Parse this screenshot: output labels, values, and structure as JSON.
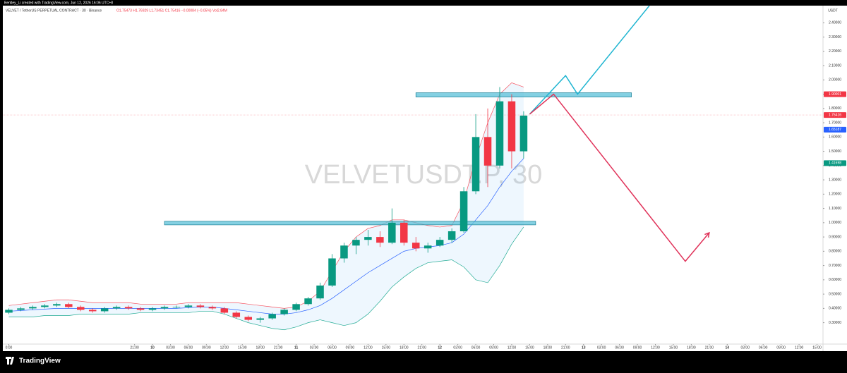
{
  "header": {
    "credit": "Bentley_Li created with TradingView.com, Jun 12, 2026 16:06 UTC+8"
  },
  "chart_data": {
    "type": "candlestick",
    "symbol_line": "VELVET / TetherUS PERPETUAL CONTRACT · 30 · Binance",
    "legend_text": "O1.75473 H1.76929 L1.73451 C1.75416 −0.00084 (−0.05%) Vol2.84M",
    "watermark": "VELVETUSDT.P, 30",
    "y_unit": "USDT",
    "up_color": "#089981",
    "down_color": "#f23645",
    "x": [
      0,
      2,
      4,
      6,
      8,
      10,
      12,
      14,
      16,
      18,
      20,
      22,
      24,
      26,
      28,
      30,
      32,
      34,
      36,
      38,
      40,
      42,
      44,
      46,
      48,
      50,
      52,
      54,
      56,
      58,
      60,
      62,
      64,
      66,
      68,
      70,
      72,
      74,
      76,
      78,
      80,
      82,
      84,
      86
    ],
    "open": [
      0.37,
      0.39,
      0.4,
      0.41,
      0.42,
      0.43,
      0.41,
      0.39,
      0.38,
      0.4,
      0.41,
      0.4,
      0.39,
      0.4,
      0.41,
      0.41,
      0.42,
      0.41,
      0.4,
      0.37,
      0.34,
      0.32,
      0.33,
      0.36,
      0.39,
      0.43,
      0.47,
      0.56,
      0.75,
      0.84,
      0.88,
      0.9,
      0.86,
      1.0,
      0.86,
      0.82,
      0.84,
      0.88,
      0.94,
      1.22,
      1.6,
      1.4,
      1.85,
      1.5
    ],
    "high": [
      0.4,
      0.41,
      0.42,
      0.43,
      0.44,
      0.44,
      0.42,
      0.4,
      0.41,
      0.42,
      0.42,
      0.41,
      0.41,
      0.42,
      0.42,
      0.43,
      0.43,
      0.42,
      0.41,
      0.38,
      0.35,
      0.34,
      0.37,
      0.4,
      0.44,
      0.48,
      0.58,
      0.78,
      0.86,
      0.9,
      0.95,
      0.94,
      1.1,
      1.02,
      0.9,
      0.86,
      0.9,
      0.96,
      1.25,
      1.76,
      1.8,
      1.95,
      1.9,
      1.78
    ],
    "low": [
      0.36,
      0.38,
      0.39,
      0.4,
      0.41,
      0.4,
      0.38,
      0.37,
      0.37,
      0.39,
      0.39,
      0.38,
      0.38,
      0.39,
      0.4,
      0.4,
      0.4,
      0.39,
      0.36,
      0.33,
      0.31,
      0.3,
      0.32,
      0.35,
      0.38,
      0.42,
      0.46,
      0.55,
      0.72,
      0.78,
      0.84,
      0.83,
      0.85,
      0.84,
      0.8,
      0.79,
      0.83,
      0.86,
      0.93,
      1.2,
      1.25,
      1.38,
      1.38,
      1.45
    ],
    "close": [
      0.39,
      0.4,
      0.41,
      0.42,
      0.43,
      0.41,
      0.39,
      0.38,
      0.4,
      0.41,
      0.4,
      0.39,
      0.4,
      0.41,
      0.41,
      0.42,
      0.41,
      0.4,
      0.37,
      0.34,
      0.32,
      0.33,
      0.36,
      0.39,
      0.43,
      0.47,
      0.56,
      0.75,
      0.84,
      0.88,
      0.9,
      0.86,
      1.0,
      0.86,
      0.82,
      0.84,
      0.88,
      0.94,
      1.22,
      1.6,
      1.4,
      1.85,
      1.5,
      1.75
    ],
    "band_fill": "rgba(33,150,243,0.08)",
    "bands": [
      {
        "color": "#f7525f",
        "values": [
          0.42,
          0.43,
          0.44,
          0.45,
          0.46,
          0.46,
          0.45,
          0.44,
          0.44,
          0.44,
          0.44,
          0.43,
          0.43,
          0.43,
          0.43,
          0.44,
          0.44,
          0.44,
          0.44,
          0.44,
          0.43,
          0.42,
          0.41,
          0.4,
          0.41,
          0.45,
          0.52,
          0.66,
          0.8,
          0.9,
          0.96,
          0.98,
          1.02,
          1.02,
          1.0,
          0.98,
          0.97,
          0.98,
          1.15,
          1.45,
          1.7,
          1.9,
          1.98,
          1.95
        ]
      },
      {
        "color": "#2962ff",
        "values": [
          0.38,
          0.385,
          0.39,
          0.395,
          0.4,
          0.4,
          0.4,
          0.4,
          0.4,
          0.4,
          0.4,
          0.4,
          0.4,
          0.4,
          0.4,
          0.405,
          0.41,
          0.41,
          0.4,
          0.39,
          0.38,
          0.37,
          0.36,
          0.36,
          0.37,
          0.39,
          0.42,
          0.47,
          0.53,
          0.59,
          0.65,
          0.7,
          0.75,
          0.8,
          0.82,
          0.83,
          0.84,
          0.86,
          0.92,
          1.02,
          1.12,
          1.25,
          1.36,
          1.45
        ]
      },
      {
        "color": "#22ab94",
        "values": [
          0.34,
          0.34,
          0.34,
          0.35,
          0.35,
          0.35,
          0.36,
          0.36,
          0.36,
          0.36,
          0.36,
          0.37,
          0.37,
          0.37,
          0.37,
          0.37,
          0.38,
          0.38,
          0.36,
          0.33,
          0.3,
          0.28,
          0.26,
          0.25,
          0.27,
          0.3,
          0.32,
          0.3,
          0.28,
          0.3,
          0.36,
          0.45,
          0.55,
          0.62,
          0.68,
          0.72,
          0.73,
          0.74,
          0.69,
          0.6,
          0.58,
          0.7,
          0.85,
          0.97
        ]
      }
    ],
    "zones": [
      {
        "color": "#5bc0d8",
        "x": [
          26,
          88
        ],
        "y": [
          0.985,
          1.01
        ]
      },
      {
        "color": "#5bc0d8",
        "x": [
          68,
          104
        ],
        "y": [
          1.88,
          1.91
        ]
      }
    ],
    "projections": [
      {
        "color": "#1fb5d1",
        "x": [
          87,
          93,
          95,
          107
        ],
        "values": [
          1.76,
          2.03,
          1.9,
          2.52
        ]
      },
      {
        "color": "#e0335a",
        "x": [
          87,
          91,
          113,
          117
        ],
        "values": [
          1.76,
          1.9,
          0.73,
          0.93
        ]
      }
    ],
    "price_labels": [
      {
        "value": 1.90001,
        "label": "1.90001",
        "color": "#f23645"
      },
      {
        "value": 1.75416,
        "label": "1.75416",
        "color": "#f23645"
      },
      {
        "value": 1.65187,
        "label": "1.65187",
        "color": "#2962ff"
      },
      {
        "value": 1.41698,
        "label": "1.41698",
        "color": "#089981"
      }
    ],
    "xlim": [
      -1,
      136
    ],
    "xticks": [
      {
        "value": 0,
        "label": "0:00"
      },
      {
        "value": 21,
        "label": "21:00"
      },
      {
        "value": 24,
        "label": "10"
      },
      {
        "value": 27,
        "label": "03:00"
      },
      {
        "value": 30,
        "label": "06:00"
      },
      {
        "value": 33,
        "label": "09:00"
      },
      {
        "value": 36,
        "label": "12:00"
      },
      {
        "value": 39,
        "label": "15:00"
      },
      {
        "value": 42,
        "label": "18:00"
      },
      {
        "value": 45,
        "label": "21:00"
      },
      {
        "value": 48,
        "label": "11"
      },
      {
        "value": 51,
        "label": "03:00"
      },
      {
        "value": 54,
        "label": "06:00"
      },
      {
        "value": 57,
        "label": "09:00"
      },
      {
        "value": 60,
        "label": "12:00"
      },
      {
        "value": 63,
        "label": "15:00"
      },
      {
        "value": 66,
        "label": "18:00"
      },
      {
        "value": 69,
        "label": "21:00"
      },
      {
        "value": 72,
        "label": "12"
      },
      {
        "value": 75,
        "label": "03:00"
      },
      {
        "value": 78,
        "label": "06:00"
      },
      {
        "value": 81,
        "label": "09:00"
      },
      {
        "value": 84,
        "label": "12:00"
      },
      {
        "value": 87,
        "label": "15:00"
      },
      {
        "value": 90,
        "label": "18:00"
      },
      {
        "value": 93,
        "label": "21:00"
      },
      {
        "value": 96,
        "label": "13"
      },
      {
        "value": 99,
        "label": "03:00"
      },
      {
        "value": 102,
        "label": "06:00"
      },
      {
        "value": 105,
        "label": "09:00"
      },
      {
        "value": 108,
        "label": "12:00"
      },
      {
        "value": 111,
        "label": "15:00"
      },
      {
        "value": 114,
        "label": "18:00"
      },
      {
        "value": 117,
        "label": "21:00"
      },
      {
        "value": 120,
        "label": "14"
      },
      {
        "value": 123,
        "label": "03:00"
      },
      {
        "value": 126,
        "label": "06:00"
      },
      {
        "value": 129,
        "label": "09:00"
      },
      {
        "value": 132,
        "label": "12:00"
      },
      {
        "value": 135,
        "label": "15:00"
      }
    ],
    "ylim": [
      0.15,
      2.52
    ],
    "yticks": [
      {
        "value": 0.3,
        "label": "0.30000"
      },
      {
        "value": 0.4,
        "label": "0.40000"
      },
      {
        "value": 0.5,
        "label": "0.50000"
      },
      {
        "value": 0.6,
        "label": "0.60000"
      },
      {
        "value": 0.7,
        "label": "0.70000"
      },
      {
        "value": 0.8,
        "label": "0.80000"
      },
      {
        "value": 0.9,
        "label": "0.90000"
      },
      {
        "value": 1.0,
        "label": "1.00000"
      },
      {
        "value": 1.1,
        "label": "1.10000"
      },
      {
        "value": 1.2,
        "label": "1.20000"
      },
      {
        "value": 1.3,
        "label": "1.30000"
      },
      {
        "value": 1.4,
        "label": "1.40000"
      },
      {
        "value": 1.5,
        "label": "1.50000"
      },
      {
        "value": 1.6,
        "label": "1.60000"
      },
      {
        "value": 1.7,
        "label": "1.70000"
      },
      {
        "value": 1.8,
        "label": "1.80000"
      },
      {
        "value": 1.9,
        "label": "1.90000"
      },
      {
        "value": 2.0,
        "label": "2.00000"
      },
      {
        "value": 2.1,
        "label": "2.10000"
      },
      {
        "value": 2.2,
        "label": "2.20000"
      },
      {
        "value": 2.3,
        "label": "2.30000"
      },
      {
        "value": 2.4,
        "label": "2.40000"
      }
    ]
  },
  "footer": {
    "brand": "TradingView"
  }
}
